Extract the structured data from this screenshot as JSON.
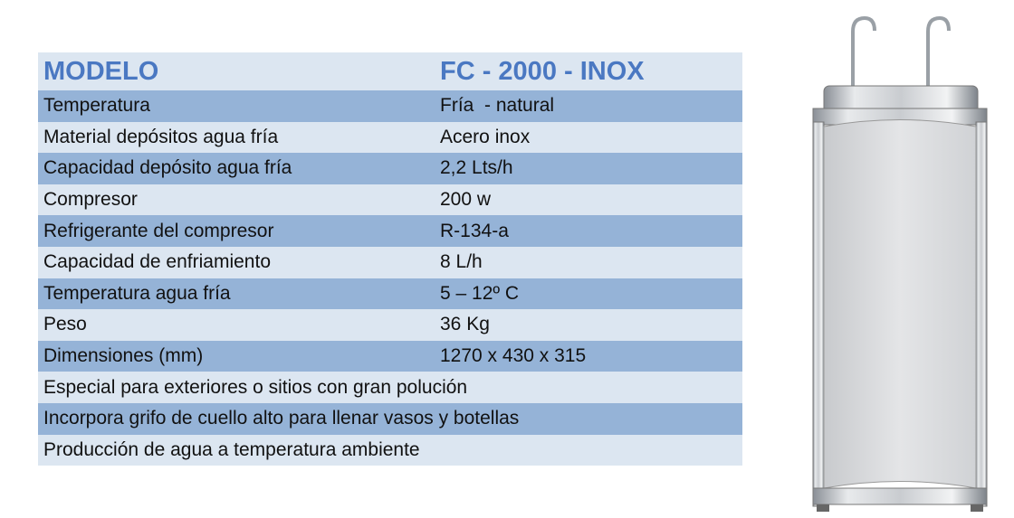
{
  "table": {
    "header": [
      "MODELO",
      "FC - 2000 - INOX"
    ],
    "rows": [
      [
        "Temperatura",
        "Fría  - natural"
      ],
      [
        "Material depósitos agua fría",
        "Acero inox"
      ],
      [
        "Capacidad depósito agua fría",
        "2,2 Lts/h"
      ],
      [
        "Compresor",
        "200 w"
      ],
      [
        "Refrigerante del compresor",
        "R-134-a"
      ],
      [
        "Capacidad de enfriamiento",
        "8 L/h"
      ],
      [
        "Temperatura agua fría",
        "5 – 12º C"
      ],
      [
        "Peso",
        "36 Kg"
      ],
      [
        "Dimensiones (mm)",
        "1270 x 430 x 315"
      ],
      [
        "Especial para exteriores o sitios con gran polución"
      ],
      [
        "Incorpora grifo de cuello alto para llenar vasos y botellas"
      ],
      [
        "Producción de agua a temperatura ambiente"
      ]
    ]
  }
}
